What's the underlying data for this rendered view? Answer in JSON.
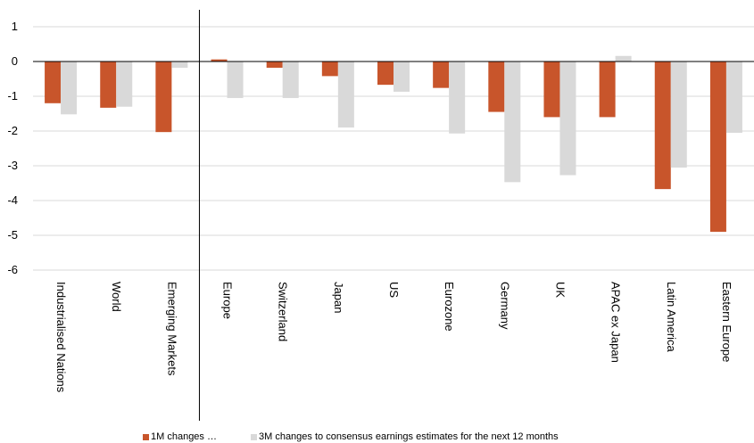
{
  "chart_data": {
    "type": "bar",
    "categories": [
      "Industrialised Nations",
      "World",
      "Emerging Markets",
      "Europe",
      "Switzerland",
      "Japan",
      "US",
      "Eurozone",
      "Germany",
      "UK",
      "APAC ex Japan",
      "Latin America",
      "Eastern Europe"
    ],
    "series": [
      {
        "name": "1M changes ...",
        "color": "#c8552b",
        "values": [
          -1.2,
          -1.33,
          -2.03,
          0.06,
          -0.18,
          -0.42,
          -0.67,
          -0.76,
          -1.45,
          -1.6,
          -1.6,
          -3.67,
          -4.9
        ]
      },
      {
        "name": "3M changes to consensus earnings estimates for the next 12 months",
        "color": "#d9d9d9",
        "values": [
          -1.52,
          -1.3,
          -0.18,
          -1.05,
          -1.05,
          -1.9,
          -0.87,
          -2.07,
          -3.47,
          -3.27,
          0.16,
          -3.05,
          -2.05
        ]
      }
    ],
    "title": "",
    "xlabel": "",
    "ylabel": "",
    "ylim": [
      -6,
      1
    ],
    "yticks": [
      1,
      0,
      -1,
      -2,
      -3,
      -4,
      -5,
      -6
    ],
    "grid": true,
    "legend_position": "bottom",
    "axis_color": "#000000",
    "grid_color": "#d9d9d9"
  },
  "legend": {
    "item1": "1M changes …",
    "item2": "3M changes to consensus earnings estimates for the next 12 months"
  }
}
